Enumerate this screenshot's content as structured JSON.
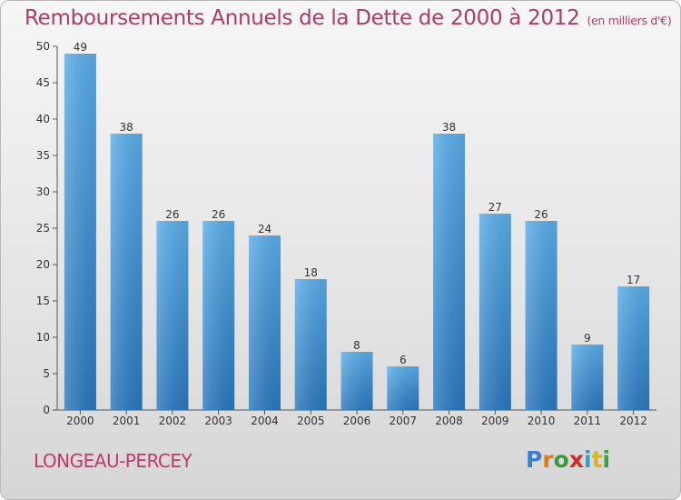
{
  "title": "Remboursements Annuels de la Dette de 2000 à 2012",
  "subtitle": "(en milliers d'€)",
  "commune": "LONGEAU-PERCEY",
  "logo": {
    "letters": [
      "P",
      "r",
      "o",
      "x",
      "i",
      "t",
      "i"
    ],
    "colors": [
      "#3a7fd0",
      "#e07a1a",
      "#3a9a3a",
      "#d02a2a",
      "#2aa0c8",
      "#e0b020",
      "#3aa040"
    ]
  },
  "chart_data": {
    "type": "bar",
    "categories": [
      "2000",
      "2001",
      "2002",
      "2003",
      "2004",
      "2005",
      "2006",
      "2007",
      "2008",
      "2009",
      "2010",
      "2011",
      "2012"
    ],
    "values": [
      49,
      38,
      26,
      26,
      24,
      18,
      8,
      6,
      38,
      27,
      26,
      9,
      17
    ],
    "title": "Remboursements Annuels de la Dette de 2000 à 2012",
    "xlabel": "",
    "ylabel": "",
    "ylim": [
      0,
      50
    ],
    "yticks": [
      0,
      5,
      10,
      15,
      20,
      25,
      30,
      35,
      40,
      45,
      50
    ],
    "grid": false,
    "bar_color": "#4a9de0"
  }
}
